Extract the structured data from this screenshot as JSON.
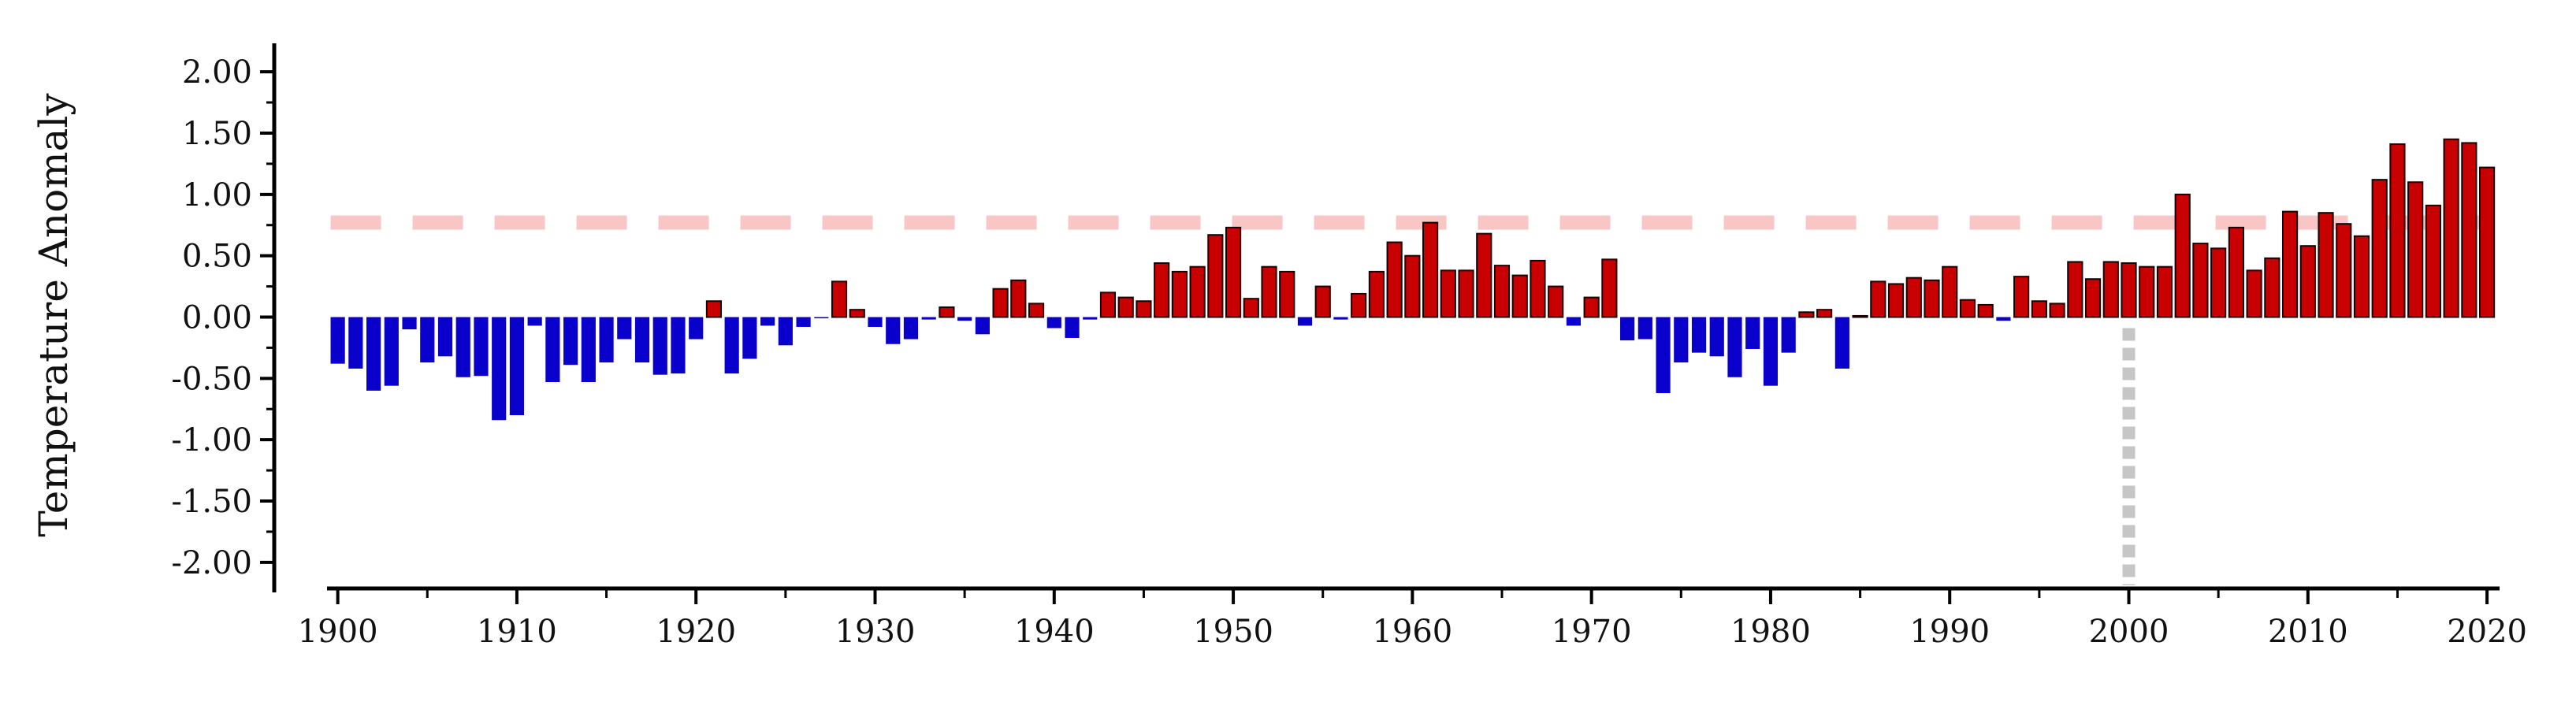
{
  "chart_data": {
    "type": "bar",
    "title": "",
    "xlabel": "",
    "ylabel": "Temperature Anomaly",
    "x_start": 1900,
    "x_end": 2020,
    "xlim": [
      1899.4,
      2020.7
    ],
    "ylim": [
      -2.2,
      2.2
    ],
    "x_ticks": [
      "1900",
      "1910",
      "1920",
      "1930",
      "1940",
      "1950",
      "1960",
      "1970",
      "1980",
      "1990",
      "2000",
      "2010",
      "2020"
    ],
    "y_ticks": [
      {
        "value": 2.0,
        "label": "2.00"
      },
      {
        "value": 1.5,
        "label": "1.50"
      },
      {
        "value": 1.0,
        "label": "1.00"
      },
      {
        "value": 0.5,
        "label": "0.50"
      },
      {
        "value": 0.0,
        "label": "0.00"
      },
      {
        "value": -0.5,
        "label": "-0.50"
      },
      {
        "value": -1.0,
        "label": "-1.00"
      },
      {
        "value": -1.5,
        "label": "-1.50"
      },
      {
        "value": -2.0,
        "label": "-2.00"
      }
    ],
    "values": [
      -0.38,
      -0.42,
      -0.6,
      -0.56,
      -0.1,
      -0.37,
      -0.32,
      -0.49,
      -0.48,
      -0.84,
      -0.8,
      -0.07,
      -0.53,
      -0.39,
      -0.53,
      -0.37,
      -0.18,
      -0.37,
      -0.47,
      -0.46,
      -0.18,
      0.13,
      -0.46,
      -0.34,
      -0.07,
      -0.23,
      -0.08,
      -0.01,
      0.29,
      0.06,
      -0.08,
      -0.22,
      -0.18,
      -0.02,
      0.08,
      -0.03,
      -0.14,
      0.23,
      0.3,
      0.11,
      -0.09,
      -0.17,
      -0.02,
      0.2,
      0.16,
      0.13,
      0.44,
      0.37,
      0.41,
      0.67,
      0.73,
      0.15,
      0.41,
      0.37,
      -0.07,
      0.25,
      -0.02,
      0.19,
      0.37,
      0.61,
      0.5,
      0.77,
      0.38,
      0.38,
      0.68,
      0.42,
      0.34,
      0.46,
      0.25,
      -0.07,
      0.16,
      0.47,
      -0.19,
      -0.18,
      -0.62,
      -0.37,
      -0.29,
      -0.32,
      -0.49,
      -0.26,
      -0.56,
      -0.29,
      0.04,
      0.06,
      -0.42,
      0.01,
      0.29,
      0.27,
      0.32,
      0.3,
      0.41,
      0.14,
      0.1,
      -0.03,
      0.33,
      0.13,
      0.11,
      0.45,
      0.31,
      0.45,
      0.44,
      0.41,
      0.41,
      1.0,
      0.6,
      0.56,
      0.73,
      0.38,
      0.48,
      0.86,
      0.58,
      0.85,
      0.76,
      0.66,
      1.12,
      1.41,
      1.1,
      0.91,
      1.45,
      1.42,
      1.22
    ],
    "reference_line": {
      "value": 0.77,
      "style": "dashed",
      "color": "#f9c6c6"
    },
    "marker_line": {
      "x": 2000,
      "style": "dotted",
      "color": "#c6c6c6"
    },
    "colors": {
      "positive": "#c90000",
      "negative": "#0a00cc",
      "bar_edge": "#1a0000",
      "axis": "#000000"
    },
    "grid": false,
    "legend": "none"
  }
}
